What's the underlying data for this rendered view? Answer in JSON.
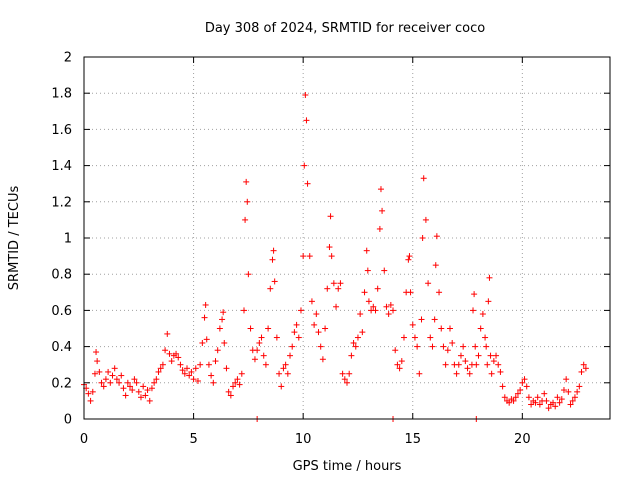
{
  "chart_data": {
    "type": "scatter",
    "title": "Day 308 of 2024, SRMTID for receiver coco",
    "xlabel": "GPS time / hours",
    "ylabel": "SRMTID / TECUs",
    "xlim": [
      0,
      24
    ],
    "ylim": [
      0,
      2
    ],
    "xticks": [
      0,
      5,
      10,
      15,
      20
    ],
    "xtick_labels": [
      "0",
      "5",
      "10",
      "15",
      "20"
    ],
    "yticks": [
      0,
      0.2,
      0.4,
      0.6,
      0.8,
      1,
      1.2,
      1.4,
      1.6,
      1.8,
      2
    ],
    "ytick_labels": [
      "0",
      "0.2",
      "0.4",
      "0.6",
      "0.8",
      "1",
      "1.2",
      "1.4",
      "1.6",
      "1.8",
      "2"
    ],
    "grid": true,
    "marker": "+",
    "color": "#ff0000",
    "series": [
      {
        "name": "SRMTID",
        "points": [
          [
            0.0,
            0.19
          ],
          [
            0.1,
            0.17
          ],
          [
            0.2,
            0.14
          ],
          [
            0.3,
            0.1
          ],
          [
            0.4,
            0.15
          ],
          [
            0.5,
            0.25
          ],
          [
            0.55,
            0.37
          ],
          [
            0.6,
            0.32
          ],
          [
            0.7,
            0.26
          ],
          [
            0.8,
            0.2
          ],
          [
            0.9,
            0.18
          ],
          [
            1.0,
            0.22
          ],
          [
            1.1,
            0.26
          ],
          [
            1.2,
            0.2
          ],
          [
            1.3,
            0.24
          ],
          [
            1.4,
            0.28
          ],
          [
            1.5,
            0.22
          ],
          [
            1.6,
            0.2
          ],
          [
            1.7,
            0.24
          ],
          [
            1.8,
            0.17
          ],
          [
            1.9,
            0.13
          ],
          [
            2.0,
            0.2
          ],
          [
            2.1,
            0.18
          ],
          [
            2.2,
            0.16
          ],
          [
            2.3,
            0.22
          ],
          [
            2.4,
            0.2
          ],
          [
            2.5,
            0.15
          ],
          [
            2.6,
            0.12
          ],
          [
            2.7,
            0.18
          ],
          [
            2.8,
            0.13
          ],
          [
            2.9,
            0.16
          ],
          [
            3.0,
            0.1
          ],
          [
            3.1,
            0.17
          ],
          [
            3.2,
            0.2
          ],
          [
            3.3,
            0.22
          ],
          [
            3.4,
            0.26
          ],
          [
            3.5,
            0.28
          ],
          [
            3.6,
            0.3
          ],
          [
            3.7,
            0.38
          ],
          [
            3.8,
            0.47
          ],
          [
            3.9,
            0.36
          ],
          [
            4.0,
            0.32
          ],
          [
            4.1,
            0.35
          ],
          [
            4.2,
            0.36
          ],
          [
            4.3,
            0.34
          ],
          [
            4.4,
            0.3
          ],
          [
            4.5,
            0.27
          ],
          [
            4.6,
            0.25
          ],
          [
            4.7,
            0.28
          ],
          [
            4.8,
            0.24
          ],
          [
            4.9,
            0.26
          ],
          [
            5.0,
            0.22
          ],
          [
            5.1,
            0.28
          ],
          [
            5.2,
            0.21
          ],
          [
            5.3,
            0.3
          ],
          [
            5.4,
            0.42
          ],
          [
            5.5,
            0.56
          ],
          [
            5.55,
            0.63
          ],
          [
            5.6,
            0.44
          ],
          [
            5.7,
            0.3
          ],
          [
            5.8,
            0.24
          ],
          [
            5.9,
            0.2
          ],
          [
            6.0,
            0.32
          ],
          [
            6.1,
            0.38
          ],
          [
            6.2,
            0.5
          ],
          [
            6.3,
            0.55
          ],
          [
            6.35,
            0.59
          ],
          [
            6.4,
            0.42
          ],
          [
            6.5,
            0.28
          ],
          [
            6.6,
            0.15
          ],
          [
            6.7,
            0.13
          ],
          [
            6.8,
            0.18
          ],
          [
            6.9,
            0.2
          ],
          [
            7.0,
            0.22
          ],
          [
            7.1,
            0.19
          ],
          [
            7.2,
            0.25
          ],
          [
            7.3,
            0.6
          ],
          [
            7.35,
            1.1
          ],
          [
            7.4,
            1.31
          ],
          [
            7.45,
            1.2
          ],
          [
            7.5,
            0.8
          ],
          [
            7.6,
            0.5
          ],
          [
            7.7,
            0.38
          ],
          [
            7.8,
            0.33
          ],
          [
            7.9,
            0.38
          ],
          [
            8.0,
            0.42
          ],
          [
            8.1,
            0.45
          ],
          [
            8.2,
            0.35
          ],
          [
            8.3,
            0.3
          ],
          [
            8.4,
            0.5
          ],
          [
            8.5,
            0.72
          ],
          [
            8.6,
            0.88
          ],
          [
            8.65,
            0.93
          ],
          [
            8.7,
            0.76
          ],
          [
            8.8,
            0.45
          ],
          [
            8.9,
            0.25
          ],
          [
            9.0,
            0.18
          ],
          [
            9.1,
            0.28
          ],
          [
            9.2,
            0.3
          ],
          [
            9.3,
            0.25
          ],
          [
            9.4,
            0.35
          ],
          [
            9.5,
            0.4
          ],
          [
            9.6,
            0.48
          ],
          [
            9.7,
            0.52
          ],
          [
            9.8,
            0.45
          ],
          [
            9.9,
            0.6
          ],
          [
            10.0,
            0.9
          ],
          [
            10.05,
            1.4
          ],
          [
            10.1,
            1.79
          ],
          [
            10.15,
            1.65
          ],
          [
            10.2,
            1.3
          ],
          [
            10.3,
            0.9
          ],
          [
            10.4,
            0.65
          ],
          [
            10.5,
            0.52
          ],
          [
            10.6,
            0.58
          ],
          [
            10.7,
            0.48
          ],
          [
            10.8,
            0.4
          ],
          [
            10.9,
            0.33
          ],
          [
            11.0,
            0.5
          ],
          [
            11.1,
            0.72
          ],
          [
            11.2,
            0.95
          ],
          [
            11.25,
            1.12
          ],
          [
            11.3,
            0.9
          ],
          [
            11.4,
            0.75
          ],
          [
            11.5,
            0.62
          ],
          [
            11.6,
            0.72
          ],
          [
            11.7,
            0.75
          ],
          [
            11.8,
            0.25
          ],
          [
            11.9,
            0.22
          ],
          [
            12.0,
            0.2
          ],
          [
            12.1,
            0.25
          ],
          [
            12.2,
            0.35
          ],
          [
            12.3,
            0.42
          ],
          [
            12.4,
            0.4
          ],
          [
            12.5,
            0.45
          ],
          [
            12.6,
            0.58
          ],
          [
            12.7,
            0.48
          ],
          [
            12.8,
            0.7
          ],
          [
            12.9,
            0.93
          ],
          [
            12.95,
            0.82
          ],
          [
            13.0,
            0.65
          ],
          [
            13.1,
            0.6
          ],
          [
            13.2,
            0.62
          ],
          [
            13.3,
            0.6
          ],
          [
            13.4,
            0.72
          ],
          [
            13.5,
            1.05
          ],
          [
            13.55,
            1.27
          ],
          [
            13.6,
            1.15
          ],
          [
            13.7,
            0.82
          ],
          [
            13.8,
            0.62
          ],
          [
            13.9,
            0.58
          ],
          [
            14.0,
            0.63
          ],
          [
            14.1,
            0.6
          ],
          [
            14.2,
            0.38
          ],
          [
            14.3,
            0.3
          ],
          [
            14.4,
            0.28
          ],
          [
            14.5,
            0.32
          ],
          [
            14.6,
            0.45
          ],
          [
            14.7,
            0.7
          ],
          [
            14.8,
            0.88
          ],
          [
            14.85,
            0.9
          ],
          [
            14.9,
            0.7
          ],
          [
            15.0,
            0.52
          ],
          [
            15.1,
            0.45
          ],
          [
            15.2,
            0.4
          ],
          [
            15.3,
            0.25
          ],
          [
            15.4,
            0.55
          ],
          [
            15.45,
            1.0
          ],
          [
            15.5,
            1.33
          ],
          [
            15.6,
            1.1
          ],
          [
            15.7,
            0.75
          ],
          [
            15.8,
            0.45
          ],
          [
            15.9,
            0.4
          ],
          [
            16.0,
            0.55
          ],
          [
            16.05,
            0.85
          ],
          [
            16.1,
            1.01
          ],
          [
            16.2,
            0.7
          ],
          [
            16.3,
            0.5
          ],
          [
            16.4,
            0.4
          ],
          [
            16.5,
            0.3
          ],
          [
            16.6,
            0.38
          ],
          [
            16.7,
            0.5
          ],
          [
            16.8,
            0.42
          ],
          [
            16.9,
            0.3
          ],
          [
            17.0,
            0.25
          ],
          [
            17.1,
            0.3
          ],
          [
            17.2,
            0.35
          ],
          [
            17.3,
            0.4
          ],
          [
            17.4,
            0.32
          ],
          [
            17.5,
            0.28
          ],
          [
            17.6,
            0.25
          ],
          [
            17.7,
            0.3
          ],
          [
            17.75,
            0.6
          ],
          [
            17.8,
            0.69
          ],
          [
            17.85,
            0.4
          ],
          [
            17.9,
            0.3
          ],
          [
            18.0,
            0.35
          ],
          [
            18.1,
            0.5
          ],
          [
            18.2,
            0.58
          ],
          [
            18.3,
            0.45
          ],
          [
            18.35,
            0.4
          ],
          [
            18.4,
            0.3
          ],
          [
            18.45,
            0.65
          ],
          [
            18.5,
            0.78
          ],
          [
            18.55,
            0.35
          ],
          [
            18.6,
            0.25
          ],
          [
            18.7,
            0.32
          ],
          [
            18.8,
            0.35
          ],
          [
            18.9,
            0.3
          ],
          [
            19.0,
            0.26
          ],
          [
            19.1,
            0.18
          ],
          [
            19.2,
            0.12
          ],
          [
            19.3,
            0.1
          ],
          [
            19.4,
            0.09
          ],
          [
            19.5,
            0.11
          ],
          [
            19.6,
            0.1
          ],
          [
            19.7,
            0.12
          ],
          [
            19.8,
            0.14
          ],
          [
            19.9,
            0.16
          ],
          [
            20.0,
            0.2
          ],
          [
            20.1,
            0.22
          ],
          [
            20.2,
            0.18
          ],
          [
            20.3,
            0.12
          ],
          [
            20.4,
            0.08
          ],
          [
            20.5,
            0.1
          ],
          [
            20.6,
            0.09
          ],
          [
            20.7,
            0.12
          ],
          [
            20.8,
            0.08
          ],
          [
            20.9,
            0.1
          ],
          [
            21.0,
            0.14
          ],
          [
            21.1,
            0.1
          ],
          [
            21.2,
            0.06
          ],
          [
            21.3,
            0.08
          ],
          [
            21.4,
            0.09
          ],
          [
            21.5,
            0.07
          ],
          [
            21.6,
            0.12
          ],
          [
            21.7,
            0.09
          ],
          [
            21.8,
            0.11
          ],
          [
            21.9,
            0.16
          ],
          [
            22.0,
            0.22
          ],
          [
            22.1,
            0.15
          ],
          [
            22.2,
            0.08
          ],
          [
            22.3,
            0.1
          ],
          [
            22.4,
            0.12
          ],
          [
            22.5,
            0.15
          ],
          [
            22.6,
            0.18
          ],
          [
            22.7,
            0.26
          ],
          [
            22.8,
            0.3
          ],
          [
            22.9,
            0.28
          ],
          [
            7.9,
            0.0
          ],
          [
            14.1,
            0.0
          ],
          [
            17.9,
            0.0
          ]
        ]
      }
    ]
  }
}
